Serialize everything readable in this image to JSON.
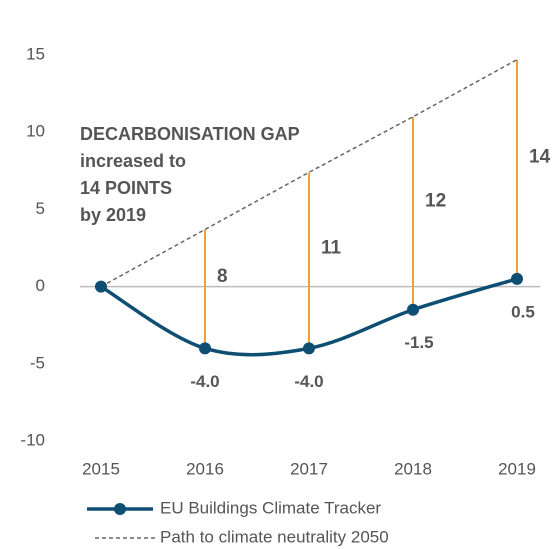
{
  "chart_data": {
    "type": "line",
    "categories": [
      "2015",
      "2016",
      "2017",
      "2018",
      "2019"
    ],
    "series": [
      {
        "name": "EU Buildings Climate Tracker",
        "color": "#0e4e72",
        "values": [
          0,
          -4.0,
          -4.0,
          -1.5,
          0.5
        ],
        "value_labels": [
          null,
          "-4.0",
          "-4.0",
          "-1.5",
          "0.5"
        ],
        "style": "solid"
      },
      {
        "name": "Path to climate neutrality 2050",
        "color": "#666666",
        "values": [
          0,
          3.7,
          7.4,
          11.0,
          14.7
        ],
        "style": "dashed"
      }
    ],
    "gaps": {
      "color": "#f0a030",
      "values": [
        null,
        8,
        11,
        12,
        14
      ]
    },
    "annotation": [
      {
        "text": "DECARBONISATION GAP",
        "color": "#f0a030"
      },
      {
        "text": "increased to",
        "color": "#0e4e72"
      },
      {
        "text": "14 POINTS",
        "color": "#f0a030"
      },
      {
        "text": "by 2019",
        "color": "#0e4e72"
      }
    ],
    "ylim": [
      -10,
      15
    ],
    "yticks": [
      15,
      10,
      5,
      0,
      -5,
      -10
    ]
  }
}
